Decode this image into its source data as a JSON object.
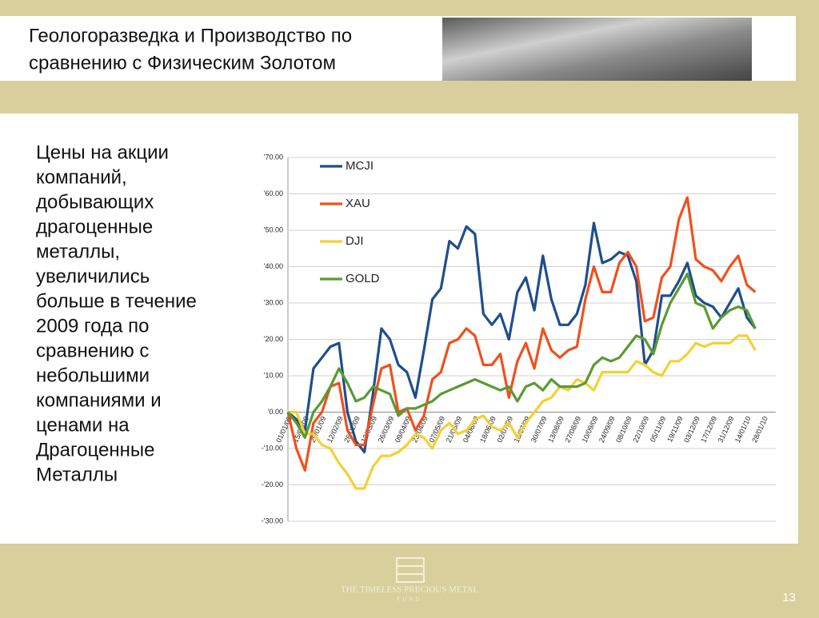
{
  "title": [
    "Геологоразведка и Производство по",
    "сравнению с Физическим Золотом"
  ],
  "body": [
    "Цены на акции",
    "компаний,",
    "добывающих",
    "драгоценные",
    "металлы,",
    "увеличились",
    "больше в течение",
    "2009 года по",
    "сравнению с",
    "небольшими",
    "компаниями и",
    "ценами на",
    "Драгоценные",
    "Металлы"
  ],
  "footer": {
    "logo": "THE TIMELESS PRECIOUS METAL",
    "logo_sub": "FUND",
    "page_number": "13"
  },
  "chart_data": {
    "type": "line",
    "categories": [
      "01/01/09",
      null,
      "15/01/09",
      null,
      "29/01/09",
      null,
      "12/02/09",
      null,
      "26/02/09",
      null,
      "12/03/09",
      null,
      "26/03/09",
      null,
      "09/04/09",
      null,
      "23/04/09",
      null,
      "07/05/09",
      null,
      "21/05/09",
      null,
      "04/06/09",
      null,
      "18/06/09",
      null,
      "02/07/09",
      null,
      "16/07/09",
      null,
      "30/07/09",
      null,
      "13/08/09",
      null,
      "27/08/09",
      null,
      "10/09/09",
      null,
      "24/09/09",
      null,
      "08/10/09",
      null,
      "22/10/09",
      null,
      "05/11/09",
      null,
      "19/11/09",
      null,
      "03/12/09",
      null,
      "17/12/09",
      null,
      "31/12/09",
      null,
      "14/01/10",
      null,
      "28/01/10"
    ],
    "series": [
      {
        "name": "MCJI",
        "color": "#1f4e8c",
        "values": [
          0,
          -2,
          -5,
          12,
          15,
          18,
          19,
          0,
          -8,
          -11,
          5,
          23,
          20,
          13,
          11,
          4,
          17,
          31,
          34,
          47,
          45,
          51,
          49,
          27,
          24,
          27,
          20,
          33,
          37,
          28,
          43,
          31,
          24,
          24,
          27,
          35,
          52,
          41,
          42,
          44,
          43,
          36,
          13,
          17,
          32,
          32,
          36,
          41,
          32,
          30,
          29,
          26,
          30,
          34,
          26,
          23,
          null
        ]
      },
      {
        "name": "XAU",
        "color": "#f0501e",
        "values": [
          0,
          -10,
          -16,
          -3,
          0,
          7,
          8,
          -5,
          -9,
          -9,
          2,
          12,
          13,
          0,
          1,
          -5,
          -1,
          9,
          11,
          19,
          20,
          23,
          21,
          13,
          13,
          16,
          4,
          14,
          19,
          12,
          23,
          17,
          15,
          17,
          18,
          31,
          40,
          33,
          33,
          41,
          44,
          40,
          25,
          26,
          37,
          40,
          53,
          59,
          42,
          40,
          39,
          36,
          40,
          43,
          35,
          33,
          null
        ]
      },
      {
        "name": "DJI",
        "color": "#f5d033",
        "values": [
          0,
          0,
          -6,
          -6,
          -9,
          -10,
          -14,
          -17,
          -21,
          -21,
          -15,
          -12,
          -12,
          -11,
          -9,
          -6,
          -7,
          -10,
          -5,
          -3,
          -6,
          -5,
          -2,
          -1,
          -4,
          -5,
          -3,
          -7,
          -3,
          0,
          3,
          4,
          7,
          6,
          9,
          8,
          6,
          11,
          11,
          11,
          11,
          14,
          13,
          11,
          10,
          14,
          14,
          16,
          19,
          18,
          19,
          19,
          19,
          21,
          21,
          17,
          null
        ]
      },
      {
        "name": "GOLD",
        "color": "#5a9a32",
        "values": [
          0,
          -3,
          -7,
          0,
          3,
          7,
          12,
          8,
          3,
          4,
          7,
          6,
          5,
          -1,
          1,
          1,
          2,
          3,
          5,
          6,
          7,
          8,
          9,
          8,
          7,
          6,
          7,
          3,
          7,
          8,
          6,
          9,
          7,
          7,
          7,
          8,
          13,
          15,
          14,
          15,
          18,
          21,
          20,
          16,
          24,
          30,
          34,
          38,
          30,
          29,
          23,
          26,
          28,
          29,
          28,
          23,
          null
        ]
      }
    ],
    "ylim": [
      -30,
      70
    ],
    "yticks": [
      {
        "value": -30,
        "label": "-'30.00"
      },
      {
        "value": -20,
        "label": "-'20.00"
      },
      {
        "value": -10,
        "label": "-'10.00"
      },
      {
        "value": 0,
        "label": "'0.00"
      },
      {
        "value": 10,
        "label": "'10.00"
      },
      {
        "value": 20,
        "label": "'20.00"
      },
      {
        "value": 30,
        "label": "'30.00"
      },
      {
        "value": 40,
        "label": "'40.00"
      },
      {
        "value": 50,
        "label": "'50.00"
      },
      {
        "value": 60,
        "label": "'60.00"
      },
      {
        "value": 70,
        "label": "'70.00"
      }
    ],
    "grid": true,
    "legend": "upper-left"
  }
}
